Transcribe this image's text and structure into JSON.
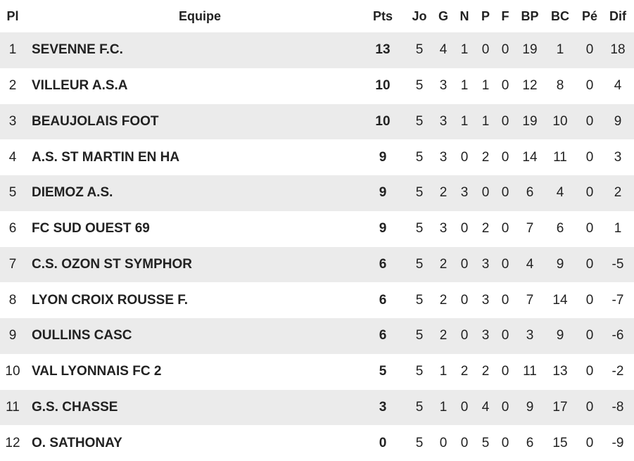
{
  "table": {
    "header": [
      "Pl",
      "Equipe",
      "Pts",
      "Jo",
      "G",
      "N",
      "P",
      "F",
      "BP",
      "BC",
      "Pé",
      "Dif"
    ],
    "rows": [
      [
        "1",
        "SEVENNE F.C.",
        "13",
        "5",
        "4",
        "1",
        "0",
        "0",
        "19",
        "1",
        "0",
        "18"
      ],
      [
        "2",
        "VILLEUR A.S.A",
        "10",
        "5",
        "3",
        "1",
        "1",
        "0",
        "12",
        "8",
        "0",
        "4"
      ],
      [
        "3",
        "BEAUJOLAIS FOOT",
        "10",
        "5",
        "3",
        "1",
        "1",
        "0",
        "19",
        "10",
        "0",
        "9"
      ],
      [
        "4",
        "A.S. ST MARTIN EN HA",
        "9",
        "5",
        "3",
        "0",
        "2",
        "0",
        "14",
        "11",
        "0",
        "3"
      ],
      [
        "5",
        "DIEMOZ A.S.",
        "9",
        "5",
        "2",
        "3",
        "0",
        "0",
        "6",
        "4",
        "0",
        "2"
      ],
      [
        "6",
        "FC SUD OUEST 69",
        "9",
        "5",
        "3",
        "0",
        "2",
        "0",
        "7",
        "6",
        "0",
        "1"
      ],
      [
        "7",
        "C.S. OZON ST SYMPHOR",
        "6",
        "5",
        "2",
        "0",
        "3",
        "0",
        "4",
        "9",
        "0",
        "-5"
      ],
      [
        "8",
        "LYON CROIX ROUSSE F.",
        "6",
        "5",
        "2",
        "0",
        "3",
        "0",
        "7",
        "14",
        "0",
        "-7"
      ],
      [
        "9",
        "OULLINS CASC",
        "6",
        "5",
        "2",
        "0",
        "3",
        "0",
        "3",
        "9",
        "0",
        "-6"
      ],
      [
        "10",
        "VAL LYONNAIS FC 2",
        "5",
        "5",
        "1",
        "2",
        "2",
        "0",
        "11",
        "13",
        "0",
        "-2"
      ],
      [
        "11",
        "G.S. CHASSE",
        "3",
        "5",
        "1",
        "0",
        "4",
        "0",
        "9",
        "17",
        "0",
        "-8"
      ],
      [
        "12",
        "O. SATHONAY",
        "0",
        "5",
        "0",
        "0",
        "5",
        "0",
        "6",
        "15",
        "0",
        "-9"
      ]
    ]
  }
}
